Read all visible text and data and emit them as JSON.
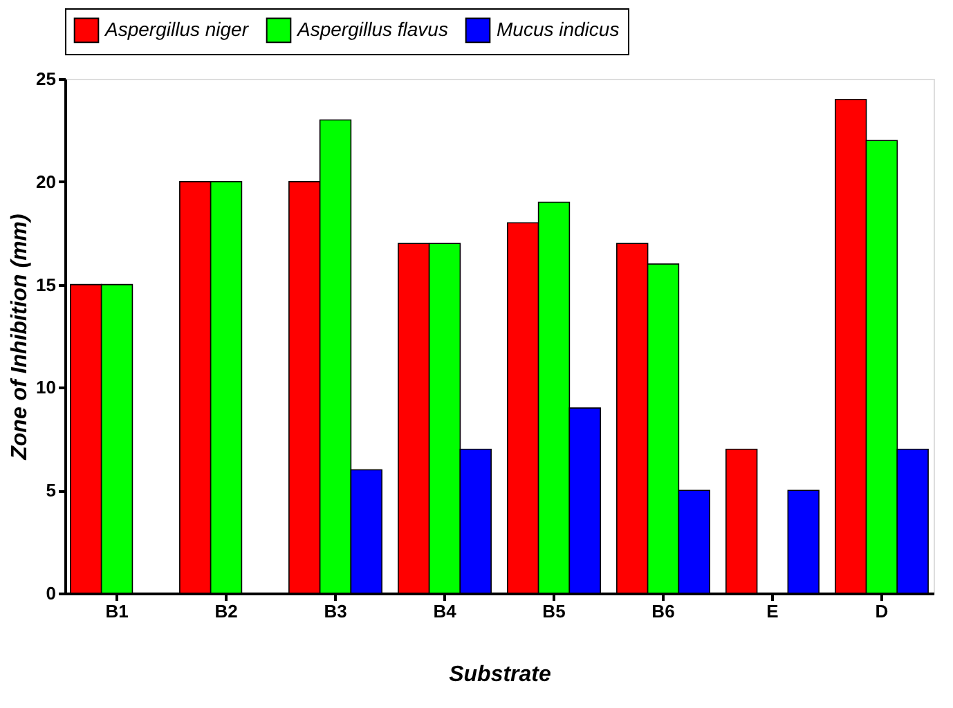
{
  "chart_data": {
    "type": "bar",
    "xlabel": "Substrate",
    "ylabel": "Zone of Inhibition (mm)",
    "categories": [
      "B1",
      "B2",
      "B3",
      "B4",
      "B5",
      "B6",
      "E",
      "D"
    ],
    "series": [
      {
        "name": "Aspergillus niger",
        "color": "#ff0000",
        "values": [
          15,
          20,
          20,
          17,
          18,
          17,
          7,
          24
        ]
      },
      {
        "name": "Aspergillus flavus",
        "color": "#00ff00",
        "values": [
          15,
          20,
          23,
          17,
          19,
          16,
          null,
          22
        ]
      },
      {
        "name": "Mucus indicus",
        "color": "#0000ff",
        "values": [
          null,
          null,
          6,
          7,
          9,
          5,
          5,
          7
        ]
      }
    ],
    "ylim": [
      0,
      25
    ],
    "yticks": [
      0,
      5,
      10,
      15,
      20,
      25
    ],
    "grid": false,
    "legend": "top"
  }
}
